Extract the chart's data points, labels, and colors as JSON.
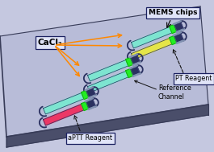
{
  "bg_color": "#c5c8e0",
  "platform_top_color": "#b8bcd8",
  "platform_bottom_color": "#4a4e6a",
  "platform_edge_color": "#383c58",
  "tube_cyan": "#7ae8d0",
  "tube_yellow": "#e8e840",
  "tube_red": "#f03060",
  "tube_pink": "#f04880",
  "reagent_green_bright": "#22ee22",
  "reagent_green_dark": "#119911",
  "chip_dark": "#2a3060",
  "chip_mid": "#484e80",
  "connector_gray": "#8090b0",
  "arrow_orange": "#ff8800",
  "arrow_black": "#111111",
  "label_cacl2": "CaCl₂",
  "label_mems": "MEMS chips",
  "label_pt": "PT Reagent",
  "label_ref": "Reference\nChannel",
  "label_aptt": "aPTT Reagent",
  "box_bg": "#e0e4f8",
  "box_edge": "#1a2060"
}
